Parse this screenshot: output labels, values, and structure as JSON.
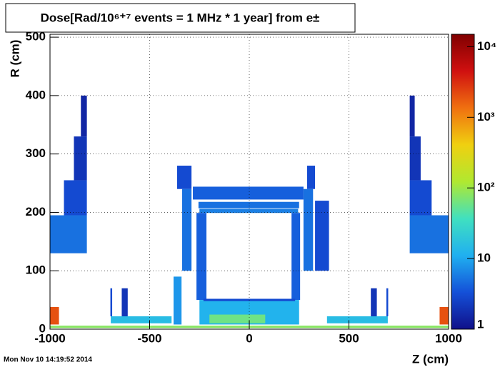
{
  "chart_data": {
    "type": "heatmap",
    "title": "Dose[Rad/10⁶⁺⁷ events = 1 MHz * 1 year] from e±",
    "x_label": "Z (cm)",
    "y_label": "R (cm)",
    "timestamp": "Mon Nov 10 14:19:52 2014",
    "xlim": [
      -1000,
      1000
    ],
    "ylim": [
      0,
      505
    ],
    "xticks": [
      -1000,
      -500,
      0,
      500,
      1000
    ],
    "yticks": [
      0,
      100,
      200,
      300,
      400,
      500
    ],
    "zlim": [
      1,
      15000
    ],
    "zlog": true,
    "zticks": [
      1,
      10,
      {
        "value": 100,
        "label": "10²"
      },
      {
        "value": 1000,
        "label": "10³"
      },
      {
        "value": 10000,
        "label": "10⁴"
      }
    ],
    "grid": true,
    "colormap": [
      "#10108a",
      "#1450d8",
      "#20b0f0",
      "#40e0c0",
      "#b0e830",
      "#f0d010",
      "#f07010",
      "#d01010",
      "#800000"
    ],
    "regions": [
      {
        "z": [
          -1000,
          -815
        ],
        "r": [
          130,
          195
        ],
        "value": 5
      },
      {
        "z": [
          -930,
          -815
        ],
        "r": [
          195,
          255
        ],
        "value": 3
      },
      {
        "z": [
          -880,
          -815
        ],
        "r": [
          255,
          330
        ],
        "value": 2
      },
      {
        "z": [
          -845,
          -815
        ],
        "r": [
          330,
          400
        ],
        "value": 1.5
      },
      {
        "z": [
          805,
          1000
        ],
        "r": [
          130,
          195
        ],
        "value": 5
      },
      {
        "z": [
          805,
          915
        ],
        "r": [
          195,
          255
        ],
        "value": 3
      },
      {
        "z": [
          805,
          860
        ],
        "r": [
          255,
          330
        ],
        "value": 2
      },
      {
        "z": [
          805,
          830
        ],
        "r": [
          330,
          400
        ],
        "value": 1.5
      },
      {
        "z": [
          -1000,
          -955
        ],
        "r": [
          8,
          38
        ],
        "value": 2000
      },
      {
        "z": [
          955,
          1000
        ],
        "r": [
          8,
          38
        ],
        "value": 2000
      },
      {
        "z": [
          -1000,
          1000
        ],
        "r": [
          2,
          6
        ],
        "value": 80
      },
      {
        "z": [
          -695,
          -390
        ],
        "r": [
          10,
          22
        ],
        "value": 15
      },
      {
        "z": [
          390,
          695
        ],
        "r": [
          10,
          22
        ],
        "value": 15
      },
      {
        "z": [
          -697,
          -688
        ],
        "r": [
          22,
          70
        ],
        "value": 3
      },
      {
        "z": [
          688,
          697
        ],
        "r": [
          22,
          70
        ],
        "value": 3
      },
      {
        "z": [
          -640,
          -610
        ],
        "r": [
          22,
          70
        ],
        "value": 2
      },
      {
        "z": [
          610,
          640
        ],
        "r": [
          22,
          70
        ],
        "value": 2
      },
      {
        "z": [
          -283,
          272
        ],
        "r": [
          222,
          244
        ],
        "value": 4
      },
      {
        "z": [
          -255,
          250
        ],
        "r": [
          207,
          218
        ],
        "value": 5
      },
      {
        "z": [
          -250,
          245
        ],
        "r": [
          199,
          206
        ],
        "value": 6
      },
      {
        "z": [
          -362,
          -290
        ],
        "r": [
          240,
          280
        ],
        "value": 3
      },
      {
        "z": [
          290,
          330
        ],
        "r": [
          240,
          280
        ],
        "value": 3
      },
      {
        "z": [
          -337,
          -290
        ],
        "r": [
          100,
          240
        ],
        "value": 5
      },
      {
        "z": [
          -265,
          -215
        ],
        "r": [
          50,
          199
        ],
        "value": 4
      },
      {
        "z": [
          212,
          255
        ],
        "r": [
          50,
          199
        ],
        "value": 4
      },
      {
        "z": [
          272,
          320
        ],
        "r": [
          100,
          240
        ],
        "value": 5
      },
      {
        "z": [
          330,
          400
        ],
        "r": [
          100,
          220
        ],
        "value": 3
      },
      {
        "z": [
          -250,
          250
        ],
        "r": [
          8,
          50
        ],
        "value": 12
      },
      {
        "z": [
          -200,
          80
        ],
        "r": [
          10,
          25
        ],
        "value": 60
      },
      {
        "z": [
          -380,
          -340
        ],
        "r": [
          8,
          90
        ],
        "value": 8
      },
      {
        "z": [
          -230,
          230
        ],
        "r": [
          48,
          52
        ],
        "value": 3
      }
    ]
  }
}
